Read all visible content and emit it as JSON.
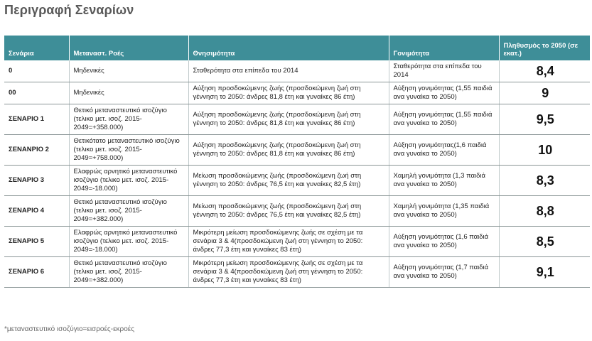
{
  "title": "Περιγραφή Σεναρίων",
  "headers": {
    "scenario": "Σενάρια",
    "migration": "Μεταναστ. Ροές",
    "mortality": "Θνησιμότητα",
    "fertility": "Γονιμότητα",
    "population": "Πληθυσμός το 2050 (σε εκατ.)"
  },
  "rows": [
    {
      "scenario": "0",
      "migration": "Μηδενικές",
      "mortality": "Σταθερότητα στα επίπεδα του 2014",
      "fertility": "Σταθερότητα στα επίπεδα του 2014",
      "population": "8,4"
    },
    {
      "scenario": "00",
      "migration": "Μηδενικές",
      "mortality": "Αύξηση προσδοκώμενης ζωής (προσδοκώμενη ζωή στη γέννηση το 2050: άνδρες 81,8 έτη και γυναίκες 86 έτη)",
      "fertility": "Αύξηση γονιμότητας (1,55 παιδιά ανα γυναίκα το 2050)",
      "population": "9"
    },
    {
      "scenario": "ΣΕΝΑΡΙΟ 1",
      "migration": "Θετικό μεταναστευτικό ισοζύγιο (τελικο μετ. ισοζ. 2015-2049=+358.000)",
      "mortality": "Αύξηση προσδοκώμενης ζωής (προσδοκώμενη ζωή στη γέννηση το 2050: άνδρες 81,8 έτη και γυναίκες 86 έτη)",
      "fertility": "Αύξηση γονιμότητας (1,55 παιδιά ανα γυναίκα το 2050)",
      "population": "9,5"
    },
    {
      "scenario": "ΣΕΝΑΝΡΙΟ 2",
      "migration": "Θετικότατο μεταναστευτικό ισοζύγιο (τελικο μετ. ισοζ. 2015-2049=+758.000)",
      "mortality": "Αύξηση προσδοκώμενης ζωής (προσδοκώμενη ζωή στη γέννηση το 2050: άνδρες 81,8 έτη και γυναίκες 86 έτη)",
      "fertility": "Αύξηση γονιμότητας(1,6 παιδιά ανα γυναίκα το 2050)",
      "population": "10"
    },
    {
      "scenario": "ΣΕΝΑΡΙΟ 3",
      "migration": "Ελαφρώς αρνητικό μεταναστευτικό ισοζύγιο (τελικο μετ. ισοζ. 2015-2049=-18.000)",
      "mortality": "Μείωση προσδοκώμενης ζωής (προσδοκώμενη ζωή στη γέννηση το 2050: άνδρες 76,5 έτη και γυναίκες 82,5 έτη)",
      "fertility": "Χαμηλή γονιμότητα (1,3 παιδιά ανα γυναίκα το 2050)",
      "population": "8,3"
    },
    {
      "scenario": "ΣΕΝΑΡΙΟ 4",
      "migration": "Θετικό μεταναστευτικό ισοζύγιο (τελικο μετ. ισοζ. 2015-2049=+382.000)",
      "mortality": "Μείωση προσδοκώμενης ζωής (προσδοκώμενη ζωή στη γέννηση το 2050: άνδρες 76,5 έτη και γυναίκες 82,5 έτη)",
      "fertility": "Χαμηλή  γονιμότητα (1,35 παιδιά ανα γυναίκα το 2050)",
      "population": "8,8"
    },
    {
      "scenario": "ΣΕΝΑΡΙΟ 5",
      "migration": "Ελαφρώς αρνητικό μεταναστευτικό ισοζύγιο (τελικο μετ. ισοζ. 2015-2049=-18.000)",
      "mortality": "Μικρότερη μείωση προσδοκώμενης ζωής σε σχέση με τα σενάρια 3 & 4(προσδοκώμενη ζωή στη γέννηση το 2050: άνδρες 77,3 έτη και γυναίκες 83 έτη)",
      "fertility": "Αύξηση γονιμότητας (1,6 παιδιά ανα γυναίκα το 2050)",
      "population": "8,5"
    },
    {
      "scenario": "ΣΕΝΑΡΙΟ 6",
      "migration": "Θετικό μεταναστευτικό ισοζύγιο (τελικο μετ. ισοζ. 2015-2049=+382.000)",
      "mortality": "Μικρότερη μείωση προσδοκώμενης ζωής σε σχέση με τα σενάρια 3 & 4(προσδοκώμενη ζωή στη γέννηση το 2050: άνδρες 77,3 έτη και γυναίκες 83 έτη)",
      "fertility": "Αύξηση γονιμότητας (1,7 παιδιά ανα γυναίκα το 2050)",
      "population": "9,1"
    }
  ],
  "footnote": "*μεταναστευτικό ισοζύγιο=εισροές-εκροές",
  "colors": {
    "header_bg": "#3e8e98",
    "header_text": "#ffffff"
  }
}
